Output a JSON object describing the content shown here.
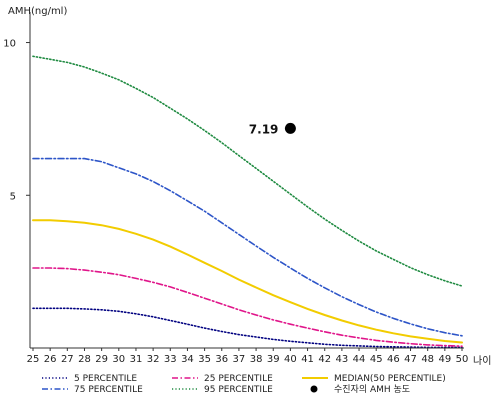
{
  "chart_data": {
    "type": "line",
    "y_axis_title": "AMH(ng/ml)",
    "x_axis_title": "나이",
    "xlim": [
      25,
      50
    ],
    "ylim": [
      0,
      11
    ],
    "y_ticks": [
      5,
      10
    ],
    "x": [
      25,
      26,
      27,
      28,
      29,
      30,
      31,
      32,
      33,
      34,
      35,
      36,
      37,
      38,
      39,
      40,
      41,
      42,
      43,
      44,
      45,
      46,
      47,
      48,
      49,
      50
    ],
    "series": [
      {
        "name": "5 PERCENTILE",
        "color": "#000080",
        "style": "dotted",
        "values": [
          1.3,
          1.3,
          1.3,
          1.28,
          1.25,
          1.2,
          1.12,
          1.02,
          0.9,
          0.78,
          0.65,
          0.54,
          0.44,
          0.36,
          0.28,
          0.22,
          0.17,
          0.12,
          0.09,
          0.07,
          0.05,
          0.04,
          0.03,
          0.02,
          0.02,
          0.02
        ]
      },
      {
        "name": "25 PERCENTILE",
        "color": "#e0158a",
        "style": "dashdot",
        "values": [
          2.62,
          2.62,
          2.6,
          2.55,
          2.48,
          2.4,
          2.28,
          2.15,
          2.0,
          1.82,
          1.63,
          1.44,
          1.25,
          1.08,
          0.92,
          0.78,
          0.65,
          0.53,
          0.42,
          0.33,
          0.25,
          0.19,
          0.14,
          0.1,
          0.08,
          0.06
        ]
      },
      {
        "name": "MEDIAN(50 PERCENTILE)",
        "color": "#f2cc00",
        "style": "solid",
        "values": [
          4.18,
          4.18,
          4.15,
          4.1,
          4.02,
          3.9,
          3.74,
          3.55,
          3.32,
          3.06,
          2.79,
          2.52,
          2.24,
          1.98,
          1.73,
          1.5,
          1.28,
          1.08,
          0.9,
          0.74,
          0.6,
          0.48,
          0.38,
          0.3,
          0.23,
          0.18
        ]
      },
      {
        "name": "75 PERCENTILE",
        "color": "#2d55c8",
        "style": "dashdot",
        "values": [
          6.2,
          6.2,
          6.2,
          6.2,
          6.1,
          5.9,
          5.7,
          5.45,
          5.15,
          4.82,
          4.48,
          4.1,
          3.72,
          3.34,
          2.97,
          2.62,
          2.28,
          1.97,
          1.68,
          1.42,
          1.18,
          0.97,
          0.79,
          0.63,
          0.5,
          0.4
        ]
      },
      {
        "name": "95 PERCENTILE",
        "color": "#1e8a40",
        "style": "dotted",
        "values": [
          9.55,
          9.45,
          9.35,
          9.2,
          9.0,
          8.78,
          8.5,
          8.2,
          7.85,
          7.5,
          7.12,
          6.72,
          6.3,
          5.88,
          5.46,
          5.04,
          4.62,
          4.22,
          3.85,
          3.5,
          3.18,
          2.9,
          2.63,
          2.4,
          2.2,
          2.03
        ]
      }
    ],
    "marker": {
      "name": "수진자의 AMH 농도",
      "x": 40,
      "y": 7.19,
      "label": "7.19",
      "color": "#000000"
    },
    "legend_position": "bottom",
    "legend_order": [
      "5 PERCENTILE",
      "25 PERCENTILE",
      "MEDIAN(50 PERCENTILE)",
      "75 PERCENTILE",
      "95 PERCENTILE",
      "수진자의 AMH 농도"
    ]
  }
}
